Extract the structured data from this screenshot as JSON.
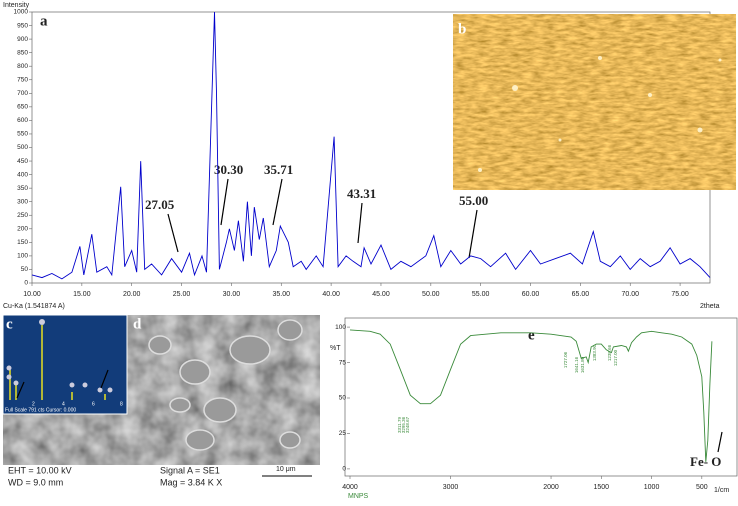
{
  "chart_data": [
    {
      "type": "line",
      "label": "a",
      "y_label": "Intensity",
      "x_label": "2theta",
      "source": "Cu-Ka (1.541874 A)",
      "xlim": [
        10,
        78
      ],
      "ylim": [
        0,
        1000
      ],
      "xticks": [
        {
          "value": 10,
          "label": "10.00"
        },
        {
          "value": 15,
          "label": "15.00"
        },
        {
          "value": 20,
          "label": "20.00"
        },
        {
          "value": 25,
          "label": "25.00"
        },
        {
          "value": 30,
          "label": "30.00"
        },
        {
          "value": 35,
          "label": "35.00"
        },
        {
          "value": 40,
          "label": "40.00"
        },
        {
          "value": 45,
          "label": "45.00"
        },
        {
          "value": 50,
          "label": "50.00"
        },
        {
          "value": 55,
          "label": "55.00"
        },
        {
          "value": 60,
          "label": "60.00"
        },
        {
          "value": 65,
          "label": "65.00"
        },
        {
          "value": 70,
          "label": "70.00"
        },
        {
          "value": 75,
          "label": "75.00"
        }
      ],
      "yticks": [
        0,
        50,
        100,
        150,
        200,
        250,
        300,
        350,
        400,
        450,
        500,
        550,
        600,
        650,
        700,
        750,
        800,
        850,
        900,
        950,
        1000
      ],
      "annotations": [
        "27.05",
        "30.30",
        "35.71",
        "43.31",
        "55.00"
      ],
      "series": [
        {
          "color": "#0000cc",
          "x": [
            10,
            11,
            12,
            13,
            14,
            14.8,
            15.2,
            16,
            16.5,
            17.5,
            18,
            18.9,
            19.3,
            20,
            20.5,
            20.9,
            21.3,
            22,
            23,
            24,
            25,
            25.8,
            26.3,
            27.05,
            27.5,
            28.3,
            28.5,
            28.8,
            29.5,
            29.8,
            30.3,
            30.7,
            31.2,
            31.6,
            32,
            32.3,
            32.8,
            33.2,
            33.8,
            34.5,
            34.9,
            35.3,
            35.71,
            36.2,
            37,
            37.5,
            38.5,
            39.2,
            40.3,
            40.7,
            41.5,
            42.2,
            43,
            43.31,
            44,
            45,
            46,
            47,
            48,
            49.5,
            50.3,
            51,
            52,
            53,
            54,
            55,
            56,
            57.5,
            58.5,
            60,
            61,
            62.5,
            64,
            65.2,
            66.3,
            67,
            68,
            69,
            70,
            71,
            72,
            73,
            74,
            75,
            76,
            77,
            78
          ],
          "values": [
            30,
            20,
            35,
            15,
            40,
            135,
            30,
            180,
            40,
            60,
            30,
            355,
            60,
            120,
            40,
            450,
            50,
            70,
            30,
            90,
            40,
            110,
            30,
            100,
            40,
            1000,
            700,
            50,
            150,
            200,
            120,
            230,
            80,
            300,
            100,
            280,
            160,
            240,
            60,
            120,
            210,
            180,
            150,
            60,
            80,
            50,
            100,
            60,
            540,
            60,
            100,
            80,
            60,
            130,
            70,
            140,
            50,
            80,
            60,
            100,
            175,
            60,
            120,
            70,
            100,
            90,
            60,
            110,
            50,
            120,
            70,
            90,
            110,
            70,
            190,
            80,
            60,
            100,
            50,
            90,
            60,
            80,
            130,
            70,
            90,
            60,
            20
          ]
        }
      ]
    },
    {
      "type": "line",
      "label": "e",
      "y_label": "%T",
      "x_label": "1/cm",
      "sample": "MNPS",
      "annotation": "Fe- O",
      "xlim": [
        4000,
        150
      ],
      "ylim": [
        -5,
        105
      ],
      "xticks": [
        4000,
        3000,
        2000,
        1500,
        1000,
        500
      ],
      "yticks": [
        0,
        25,
        50,
        75,
        100
      ],
      "peak_labels": [
        "3311.79",
        "3295.36",
        "3248.67",
        "1727.06",
        "1641.16",
        "1631.80",
        "1383.90",
        "1238.66",
        "1217.00"
      ],
      "series": [
        {
          "color": "#3a8a3a",
          "x": [
            4000,
            3800,
            3700,
            3600,
            3500,
            3400,
            3300,
            3200,
            3100,
            3000,
            2900,
            2800,
            2500,
            2200,
            2000,
            1800,
            1750,
            1700,
            1650,
            1630,
            1600,
            1550,
            1500,
            1450,
            1400,
            1380,
            1300,
            1250,
            1230,
            1200,
            1150,
            1100,
            1000,
            900,
            800,
            700,
            600,
            550,
            500,
            480,
            460,
            440,
            420,
            400
          ],
          "values": [
            98,
            97,
            95,
            88,
            70,
            52,
            46,
            46,
            52,
            70,
            88,
            94,
            96,
            96,
            95,
            93,
            90,
            78,
            79,
            75,
            86,
            88,
            88,
            84,
            82,
            86,
            87,
            86,
            83,
            89,
            93,
            96,
            97,
            96,
            95,
            93,
            88,
            80,
            65,
            40,
            5,
            20,
            60,
            90
          ]
        }
      ]
    }
  ],
  "panels": {
    "b": {
      "label": "b"
    },
    "c": {
      "label": "c",
      "ticks": [
        "2",
        "4",
        "6",
        "8"
      ],
      "footer": "Full Scale 791 cts Cursor: 0.000"
    },
    "d": {
      "label": "d",
      "eht": "EHT = 10.00 kV",
      "wd": "WD = 9.0 mm",
      "signal": "Signal A = SE1",
      "mag": "Mag =   3.84 K X",
      "scale": "10 μm"
    }
  }
}
